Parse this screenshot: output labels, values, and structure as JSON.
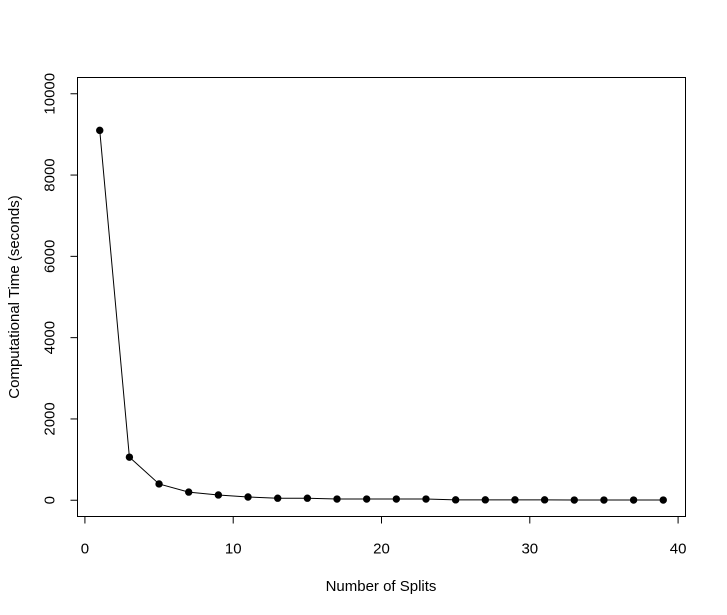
{
  "chart_data": {
    "type": "line",
    "title": "",
    "xlabel": "Number of Splits",
    "ylabel": "Computational Time (seconds)",
    "xlim": [
      -0.5,
      40.5
    ],
    "ylim": [
      -400,
      10400
    ],
    "x_ticks": [
      0,
      10,
      20,
      30,
      40
    ],
    "y_ticks": [
      0,
      2000,
      4000,
      6000,
      8000,
      10000
    ],
    "x_tick_labels": [
      "0",
      "10",
      "20",
      "30",
      "40"
    ],
    "y_tick_labels": [
      "0",
      "2000",
      "4000",
      "6000",
      "8000",
      "10000"
    ],
    "grid": false,
    "legend": "none",
    "series": [
      {
        "x": [
          1,
          3,
          5,
          7,
          9,
          11,
          13,
          15,
          17,
          19,
          21,
          23,
          25,
          27,
          29,
          31,
          33,
          35,
          37,
          39
        ],
        "values": [
          9100,
          1060,
          400,
          200,
          130,
          80,
          50,
          50,
          30,
          30,
          30,
          30,
          10,
          10,
          10,
          10,
          5,
          5,
          5,
          5
        ],
        "color": "#000000",
        "marker": "filled-circle"
      }
    ]
  }
}
